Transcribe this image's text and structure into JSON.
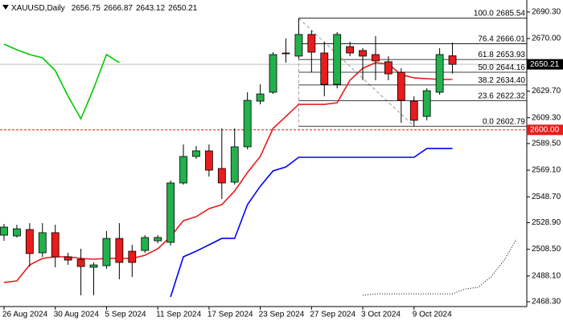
{
  "chart_data": {
    "type": "candlestick",
    "title": "XAUUSD,Daily",
    "up_color": "#22b14c",
    "down_color": "#e81c1c",
    "categories": [
      "26 Aug 2024",
      null,
      null,
      null,
      "30 Aug 2024",
      null,
      null,
      null,
      "5 Sep 2024",
      null,
      null,
      null,
      "11 Sep 2024",
      null,
      null,
      null,
      "17 Sep 2024",
      null,
      null,
      null,
      "23 Sep 2024",
      null,
      null,
      null,
      "27 Sep 2024",
      null,
      null,
      null,
      "3 Oct 2024",
      null,
      null,
      null,
      "9 Oct 2024",
      null,
      null,
      null,
      null,
      null,
      null,
      null,
      null
    ],
    "open": [
      2519.3,
      2518.7,
      2523.6,
      2505.8,
      2521.2,
      2502.7,
      2500.8,
      2494.7,
      2495.9,
      2516.8,
      2507.0,
      2507.6,
      2515.0,
      2513.8,
      2559.3,
      2579.6,
      2583.9,
      2570.4,
      2559.9,
      2587.0,
      2622.0,
      2628.8,
      2658.9,
      2656.5,
      2673.1,
      2658.9,
      2634.9,
      2663.8,
      2660.8,
      2657.7,
      2652.2,
      2644.1,
      2622.0,
      2610.3,
      2628.8,
      2656.75,
      null,
      null,
      null,
      null,
      null
    ],
    "high": [
      2527.9,
      2527.3,
      2528.5,
      2528.5,
      2527.3,
      2505.8,
      2508.9,
      2498.4,
      2522.4,
      2528.5,
      2511.9,
      2519.3,
      2519.3,
      2561.1,
      2588.8,
      2587.6,
      2588.8,
      2601.1,
      2601.1,
      2628.8,
      2634.9,
      2659.5,
      2670.0,
      2685.54,
      2676.1,
      2667.5,
      2674.9,
      2667.5,
      2662.6,
      2671.8,
      2656.5,
      2647.2,
      2625.7,
      2631.8,
      2662.6,
      2666.87,
      null,
      null,
      null,
      null,
      null
    ],
    "low": [
      2515.0,
      2517.5,
      2495.3,
      2502.7,
      2494.7,
      2496.5,
      2473.2,
      2473.2,
      2493.5,
      2485.5,
      2487.3,
      2505.8,
      2513.2,
      2511.3,
      2558.0,
      2577.7,
      2564.2,
      2547.0,
      2558.0,
      2585.1,
      2619.5,
      2627.5,
      2651.5,
      2654.6,
      2644.1,
      2625.7,
      2631.8,
      2656.5,
      2638.0,
      2638.0,
      2638.0,
      2605.4,
      2602.79,
      2607.3,
      2626.9,
      2643.12,
      null,
      null,
      null,
      null,
      null
    ],
    "close": [
      2525.5,
      2524.2,
      2505.2,
      2521.2,
      2502.7,
      2500.2,
      2495.3,
      2496.5,
      2516.8,
      2498.4,
      2498.4,
      2517.5,
      2517.5,
      2559.3,
      2579.6,
      2583.9,
      2569.1,
      2559.3,
      2587.0,
      2622.6,
      2627.5,
      2657.7,
      2658.3,
      2673.1,
      2659.5,
      2634.9,
      2673.1,
      2658.9,
      2656.5,
      2652.8,
      2642.9,
      2622.6,
      2607.3,
      2630.0,
      2657.7,
      2650.21,
      null,
      null,
      null,
      null,
      null
    ],
    "overlays": [
      {
        "color": "#e81c1c",
        "style": "solid",
        "values": [
          2483.0,
          2484.3,
          2496.5,
          2501.5,
          2502.7,
          2502.7,
          2501.5,
          2500.9,
          2501.5,
          2501.5,
          2501.5,
          2503.9,
          2508.9,
          2518.1,
          2530.4,
          2533.5,
          2539.6,
          2542.7,
          2553.1,
          2567.3,
          2579.6,
          2601.1,
          2610.3,
          2619.5,
          2619.5,
          2619.5,
          2620.8,
          2638.0,
          2647.2,
          2651.5,
          2650.3,
          2642.3,
          2639.8,
          2639.2,
          2638.6,
          2638.6,
          null,
          null,
          null,
          null,
          null
        ]
      },
      {
        "color": "#0000ff",
        "style": "solid",
        "values": [
          null,
          null,
          null,
          null,
          null,
          null,
          null,
          null,
          null,
          null,
          null,
          null,
          null,
          2472.0,
          2502.7,
          2507.0,
          2511.9,
          2516.8,
          2516.8,
          2542.7,
          2556.8,
          2568.5,
          2571.6,
          2579.0,
          2579.0,
          2579.0,
          2579.0,
          2579.0,
          2579.0,
          2579.0,
          2579.0,
          2579.0,
          2579.0,
          2585.7,
          2585.7,
          2585.7,
          null,
          null,
          null,
          null,
          null
        ]
      },
      {
        "color": "#00c800",
        "style": "solid",
        "values": [
          2665.7,
          2661.4,
          2657.7,
          2655.2,
          2645.4,
          2625.7,
          2608.5,
          2631.8,
          2657.7,
          2651.5,
          null,
          null,
          null,
          null,
          null,
          null,
          null,
          null,
          null,
          null,
          null,
          null,
          null,
          null,
          null,
          null,
          null,
          null,
          null,
          null,
          null,
          null,
          null,
          null,
          null,
          null,
          null,
          null,
          null,
          null,
          null
        ]
      },
      {
        "color": "#000000",
        "style": "dotted",
        "values": [
          null,
          null,
          null,
          null,
          null,
          null,
          null,
          null,
          null,
          null,
          null,
          null,
          null,
          null,
          null,
          null,
          null,
          null,
          null,
          null,
          null,
          null,
          null,
          null,
          null,
          null,
          null,
          null,
          2473.2,
          2474.4,
          2474.4,
          2474.4,
          2474.4,
          2474.4,
          2474.4,
          2474.4,
          2478.1,
          2479.3,
          2487.3,
          2499.6,
          2516.2
        ]
      }
    ],
    "fibonacci": {
      "color": "#000000",
      "ratio_labels": [
        "100.0",
        "76.4",
        "61.8",
        "50.0",
        "38.2",
        "23.6",
        "0.0"
      ],
      "values": [
        2685.54,
        2666.01,
        2653.93,
        2644.16,
        2634.4,
        2622.32,
        2602.79
      ],
      "value_labels": [
        "2685.54",
        "2666.01",
        "2653.93",
        "2644.16",
        "2634.40",
        "2622.32",
        "2602.79"
      ]
    },
    "levels": [
      {
        "value": 2600,
        "label": "2600.00",
        "color": "#e81c1c"
      }
    ],
    "bid_color": "#c0c0c0",
    "ylim": [
      2464.6,
      2699.5
    ],
    "yticks": [
      {
        "value": 2690.3,
        "label": "2690.30"
      },
      {
        "value": 2670,
        "label": "2670.00"
      },
      {
        "value": 2629.7,
        "label": "2629.70"
      },
      {
        "value": 2609.3,
        "label": "2609.30"
      },
      {
        "value": 2589.5,
        "label": "2589.50"
      },
      {
        "value": 2569.1,
        "label": "2569.10"
      },
      {
        "value": 2548.7,
        "label": "2548.70"
      },
      {
        "value": 2528.9,
        "label": "2528.90"
      },
      {
        "value": 2508.5,
        "label": "2508.50"
      },
      {
        "value": 2488.1,
        "label": "2488.10"
      },
      {
        "value": 2468.3,
        "label": "2468.30"
      }
    ],
    "grid": false
  }
}
